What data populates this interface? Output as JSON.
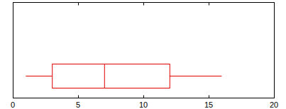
{
  "chart_data": {
    "type": "box",
    "orientation": "horizontal",
    "boxes": [
      {
        "min": 1,
        "q1": 3,
        "median": 7,
        "q3": 12,
        "max": 16
      }
    ],
    "color": "#e00000",
    "xlim": [
      0,
      20
    ],
    "xticks": [
      0,
      5,
      10,
      15,
      20
    ],
    "tick_labels": "x",
    "grid": false
  }
}
